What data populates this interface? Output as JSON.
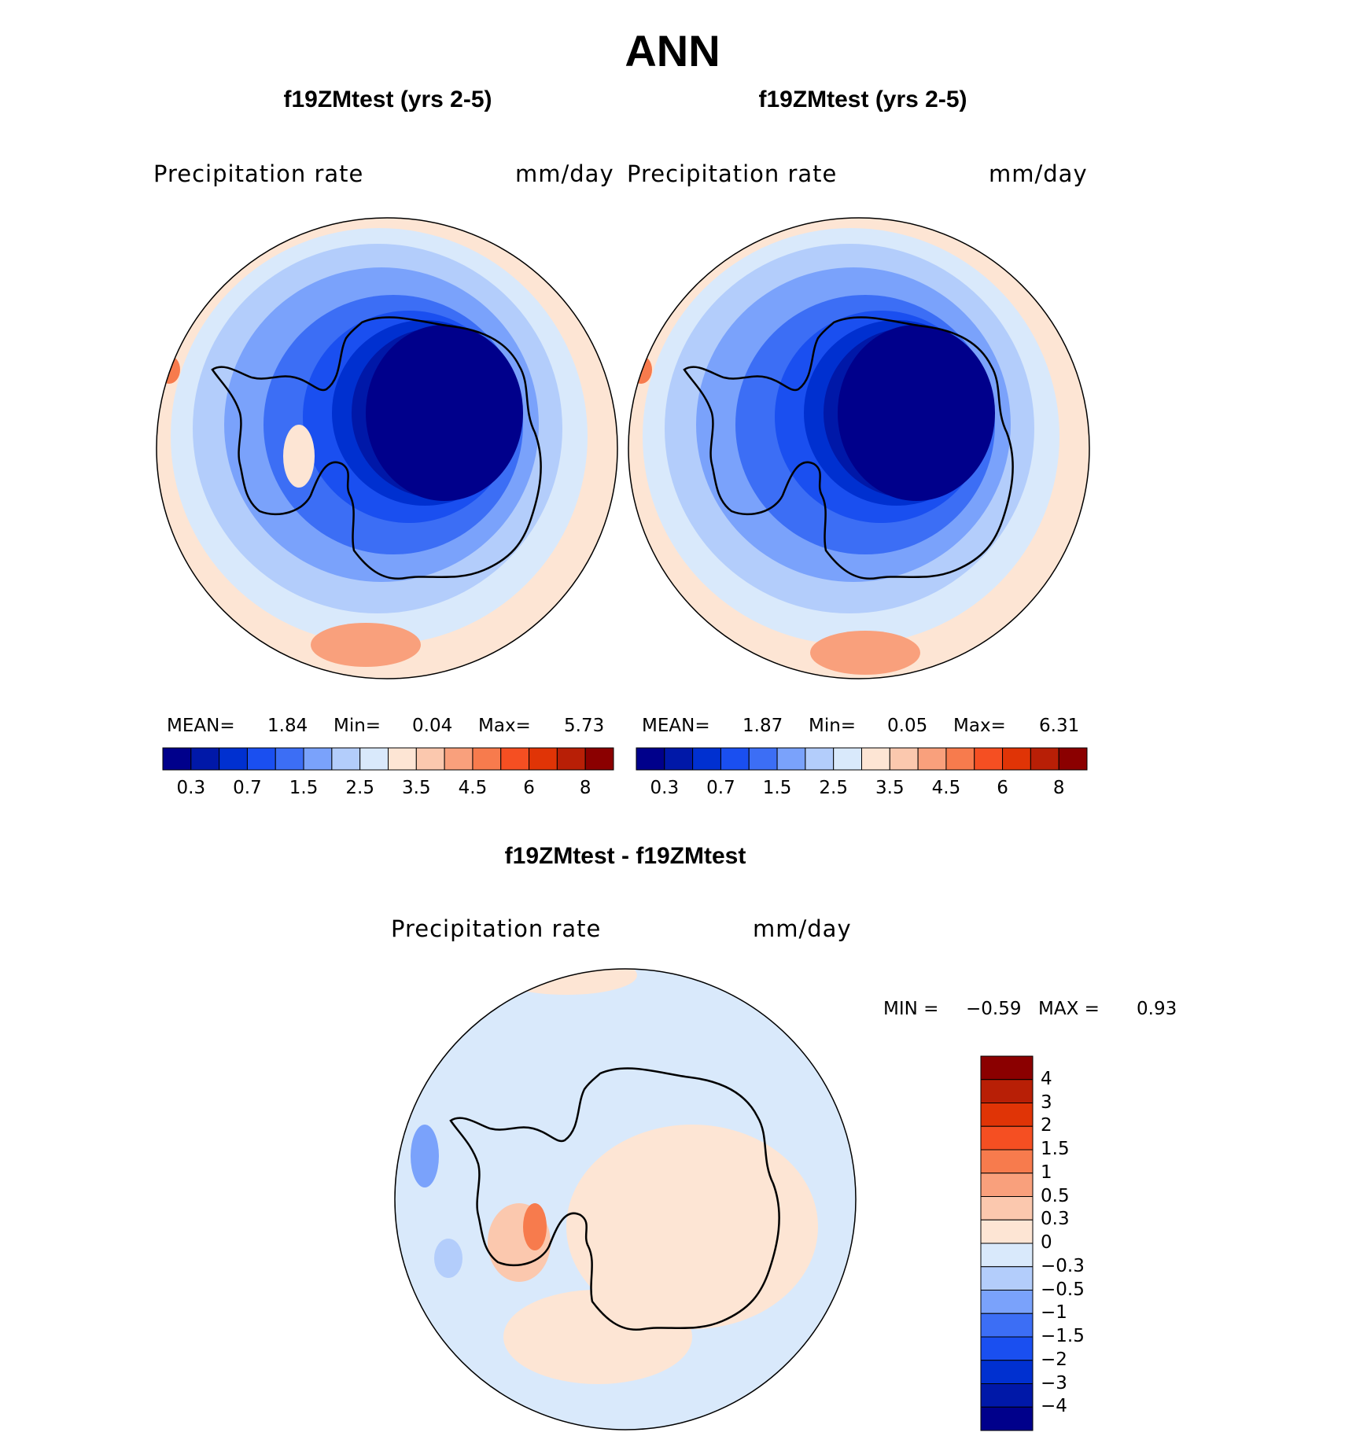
{
  "title": "ANN",
  "panels": [
    {
      "case_title": "f19ZMtest (yrs 2-5)",
      "variable": "Precipitation  rate",
      "units": "mm/day",
      "stats": {
        "mean_label": "MEAN=",
        "mean": "1.84",
        "min_label": "Min=",
        "min": "0.04",
        "max_label": "Max=",
        "max": "5.73"
      }
    },
    {
      "case_title": "f19ZMtest (yrs 2-5)",
      "variable": "Precipitation  rate",
      "units": "mm/day",
      "stats": {
        "mean_label": "MEAN=",
        "mean": "1.87",
        "min_label": "Min=",
        "min": "0.05",
        "max_label": "Max=",
        "max": "6.31"
      }
    }
  ],
  "diff_panel": {
    "case_title": "f19ZMtest - f19ZMtest",
    "variable": "Precipitation  rate",
    "units": "mm/day",
    "stats": {
      "min_label": "MIN =",
      "min": "−0.59",
      "max_label": "MAX =",
      "max": "0.93"
    }
  },
  "colorbar_main": {
    "colors": [
      "#00008b",
      "#0018a8",
      "#0030d0",
      "#1a4ff0",
      "#3c6ef5",
      "#7aa2fb",
      "#b3cdfb",
      "#d9e9fb",
      "#fde5d4",
      "#fbc8ae",
      "#f9a07c",
      "#f77b4d",
      "#f54f22",
      "#e03406",
      "#b81f06",
      "#8b0000"
    ],
    "tick_labels": [
      "0.3",
      "0.7",
      "1.5",
      "2.5",
      "3.5",
      "4.5",
      "6",
      "8"
    ]
  },
  "colorbar_diff": {
    "colors_top_to_bottom": [
      "#8b0000",
      "#b81f06",
      "#e03406",
      "#f54f22",
      "#f77b4d",
      "#f9a07c",
      "#fbc8ae",
      "#fde5d4",
      "#d9e9fb",
      "#b3cdfb",
      "#7aa2fb",
      "#3c6ef5",
      "#1a4ff0",
      "#0030d0",
      "#0018a8",
      "#00008b"
    ],
    "tick_labels": [
      "4",
      "3",
      "2",
      "1.5",
      "1",
      "0.5",
      "0.3",
      "0",
      "−0.3",
      "−0.5",
      "−1",
      "−1.5",
      "−2",
      "−3",
      "−4"
    ]
  }
}
